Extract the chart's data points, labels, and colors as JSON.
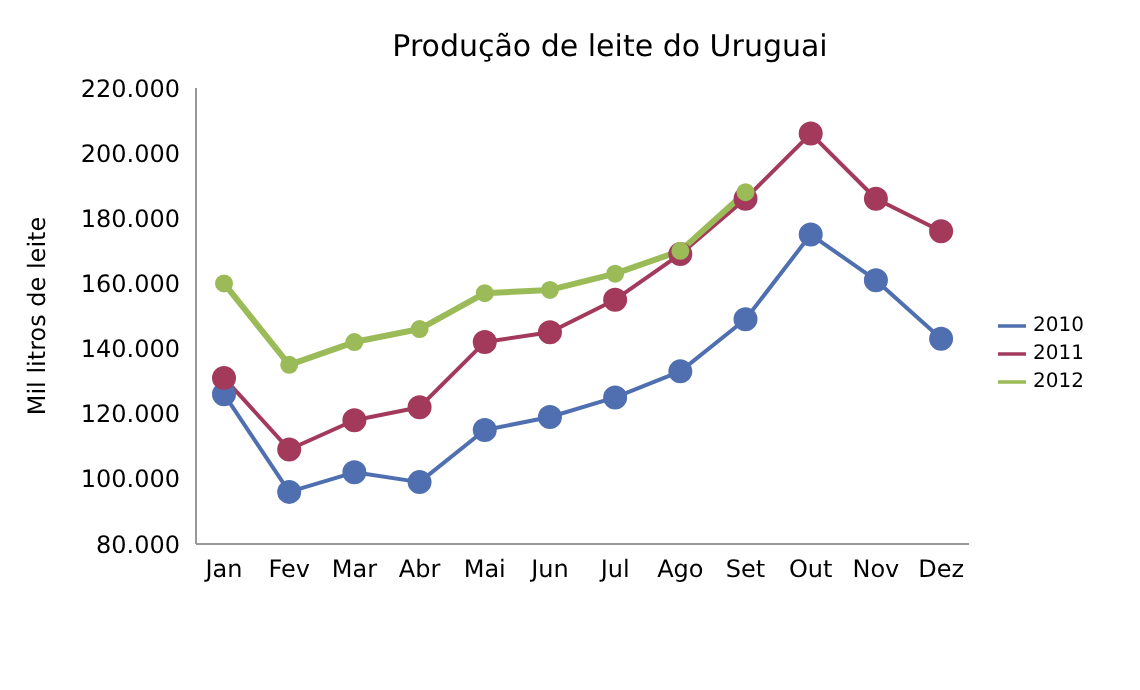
{
  "chart_data": {
    "type": "line",
    "title": "Produção de leite do Uruguai",
    "ylabel": "Mil litros de leite",
    "categories": [
      "Jan",
      "Fev",
      "Mar",
      "Abr",
      "Mai",
      "Jun",
      "Jul",
      "Ago",
      "Set",
      "Out",
      "Nov",
      "Dez"
    ],
    "series": [
      {
        "name": "2010",
        "color": "#4f6fb0",
        "values": [
          126000,
          96000,
          102000,
          99000,
          115000,
          119000,
          125000,
          133000,
          149000,
          175000,
          161000,
          143000
        ]
      },
      {
        "name": "2011",
        "color": "#a33a5c",
        "values": [
          131000,
          109000,
          118000,
          122000,
          142000,
          145000,
          155000,
          169000,
          186000,
          206000,
          186000,
          176000
        ]
      },
      {
        "name": "2012",
        "color": "#9bbb59",
        "values": [
          160000,
          135000,
          142000,
          146000,
          157000,
          158000,
          163000,
          170000,
          188000,
          null,
          null,
          null
        ]
      }
    ],
    "ylim": [
      80000,
      220000
    ],
    "yticks": [
      {
        "value": 80000,
        "label": "80.000"
      },
      {
        "value": 100000,
        "label": "100.000"
      },
      {
        "value": 120000,
        "label": "120.000"
      },
      {
        "value": 140000,
        "label": "140.000"
      },
      {
        "value": 160000,
        "label": "160.000"
      },
      {
        "value": 180000,
        "label": "180.000"
      },
      {
        "value": 200000,
        "label": "200.000"
      },
      {
        "value": 220000,
        "label": "220.000"
      }
    ],
    "grid": false,
    "legend": "right",
    "marker": "circle",
    "line_style": "solid"
  }
}
